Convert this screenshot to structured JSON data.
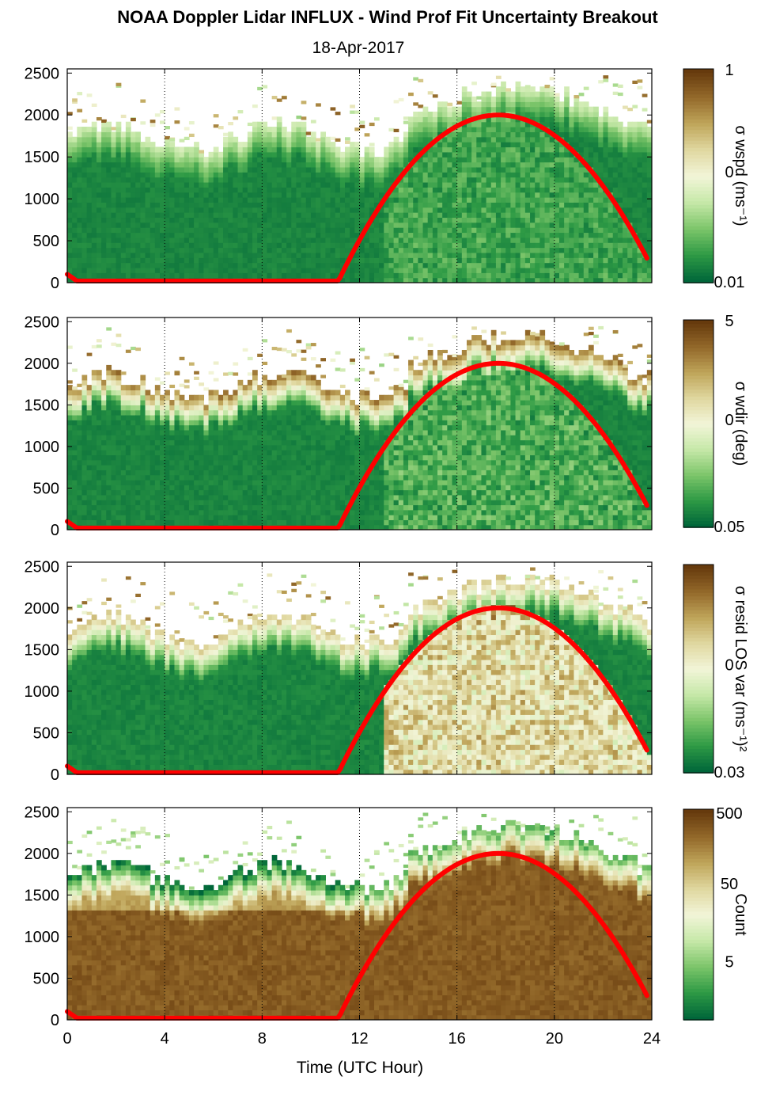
{
  "title": "NOAA Doppler Lidar INFLUX - Wind Prof Fit Uncertainty Breakout",
  "subtitle": "18-Apr-2017",
  "xlabel": "Time (UTC Hour)",
  "x_ticks": [
    "0",
    "4",
    "8",
    "12",
    "16",
    "20",
    "24"
  ],
  "y_ticks": [
    "0",
    "500",
    "1000",
    "1500",
    "2000",
    "2500"
  ],
  "colors": {
    "colormap": [
      "#00663a",
      "#2e9a45",
      "#7cc56a",
      "#c6e8a8",
      "#f2f5d8",
      "#e0d8a0",
      "#bfa55a",
      "#93692a",
      "#663a0d"
    ],
    "curve": "#ff0000",
    "gap": "#ffffff"
  },
  "chart_data": [
    {
      "type": "heatmap",
      "panel": 1,
      "colorbar_label": "σ wspd (ms⁻¹)",
      "colorbar_ticks": [
        "1",
        "0",
        "0.01"
      ],
      "ylim": [
        0,
        2550
      ],
      "xlim": [
        0,
        24
      ],
      "log_scale": true,
      "grid": "dotted vertical lines at 4-hour ticks",
      "overlay_curve": {
        "x": [
          0,
          0.2,
          0.5,
          11.1,
          13,
          15,
          17.7,
          20,
          22,
          23.8
        ],
        "y": [
          100,
          40,
          20,
          20,
          900,
          1650,
          2000,
          1700,
          1050,
          300
        ]
      },
      "description": "Mostly low uncertainty below ~1700 m, increasing near top and during daytime mixing"
    },
    {
      "type": "heatmap",
      "panel": 2,
      "colorbar_label": "σ wdir (deg)",
      "colorbar_ticks": [
        "5",
        "0",
        "0.05"
      ],
      "ylim": [
        0,
        2550
      ],
      "xlim": [
        0,
        24
      ],
      "log_scale": true,
      "overlay_curve": {
        "x": [
          0,
          0.2,
          0.5,
          11.1,
          13,
          15,
          17.7,
          20,
          22,
          23.8
        ],
        "y": [
          100,
          40,
          20,
          20,
          900,
          1650,
          2000,
          1700,
          1050,
          300
        ]
      }
    },
    {
      "type": "heatmap",
      "panel": 3,
      "colorbar_label": "σ resid LOS var (ms⁻¹)²",
      "colorbar_ticks": [
        "0",
        "0.03"
      ],
      "ylim": [
        0,
        2550
      ],
      "xlim": [
        0,
        24
      ],
      "log_scale": true,
      "overlay_curve": {
        "x": [
          0,
          0.2,
          0.5,
          11.1,
          13,
          15,
          17.7,
          20,
          22,
          23.8
        ],
        "y": [
          100,
          40,
          20,
          20,
          900,
          1650,
          2000,
          1700,
          1050,
          300
        ]
      }
    },
    {
      "type": "heatmap",
      "panel": 4,
      "colorbar_label": "Count",
      "colorbar_ticks": [
        "500",
        "50",
        "5"
      ],
      "ylim": [
        0,
        2550
      ],
      "xlim": [
        0,
        24
      ],
      "log_scale": true,
      "overlay_curve": {
        "x": [
          0,
          0.2,
          0.5,
          11.1,
          13,
          15,
          17.7,
          20,
          22,
          23.8
        ],
        "y": [
          100,
          40,
          20,
          20,
          900,
          1650,
          2000,
          1700,
          1050,
          300
        ]
      }
    }
  ]
}
